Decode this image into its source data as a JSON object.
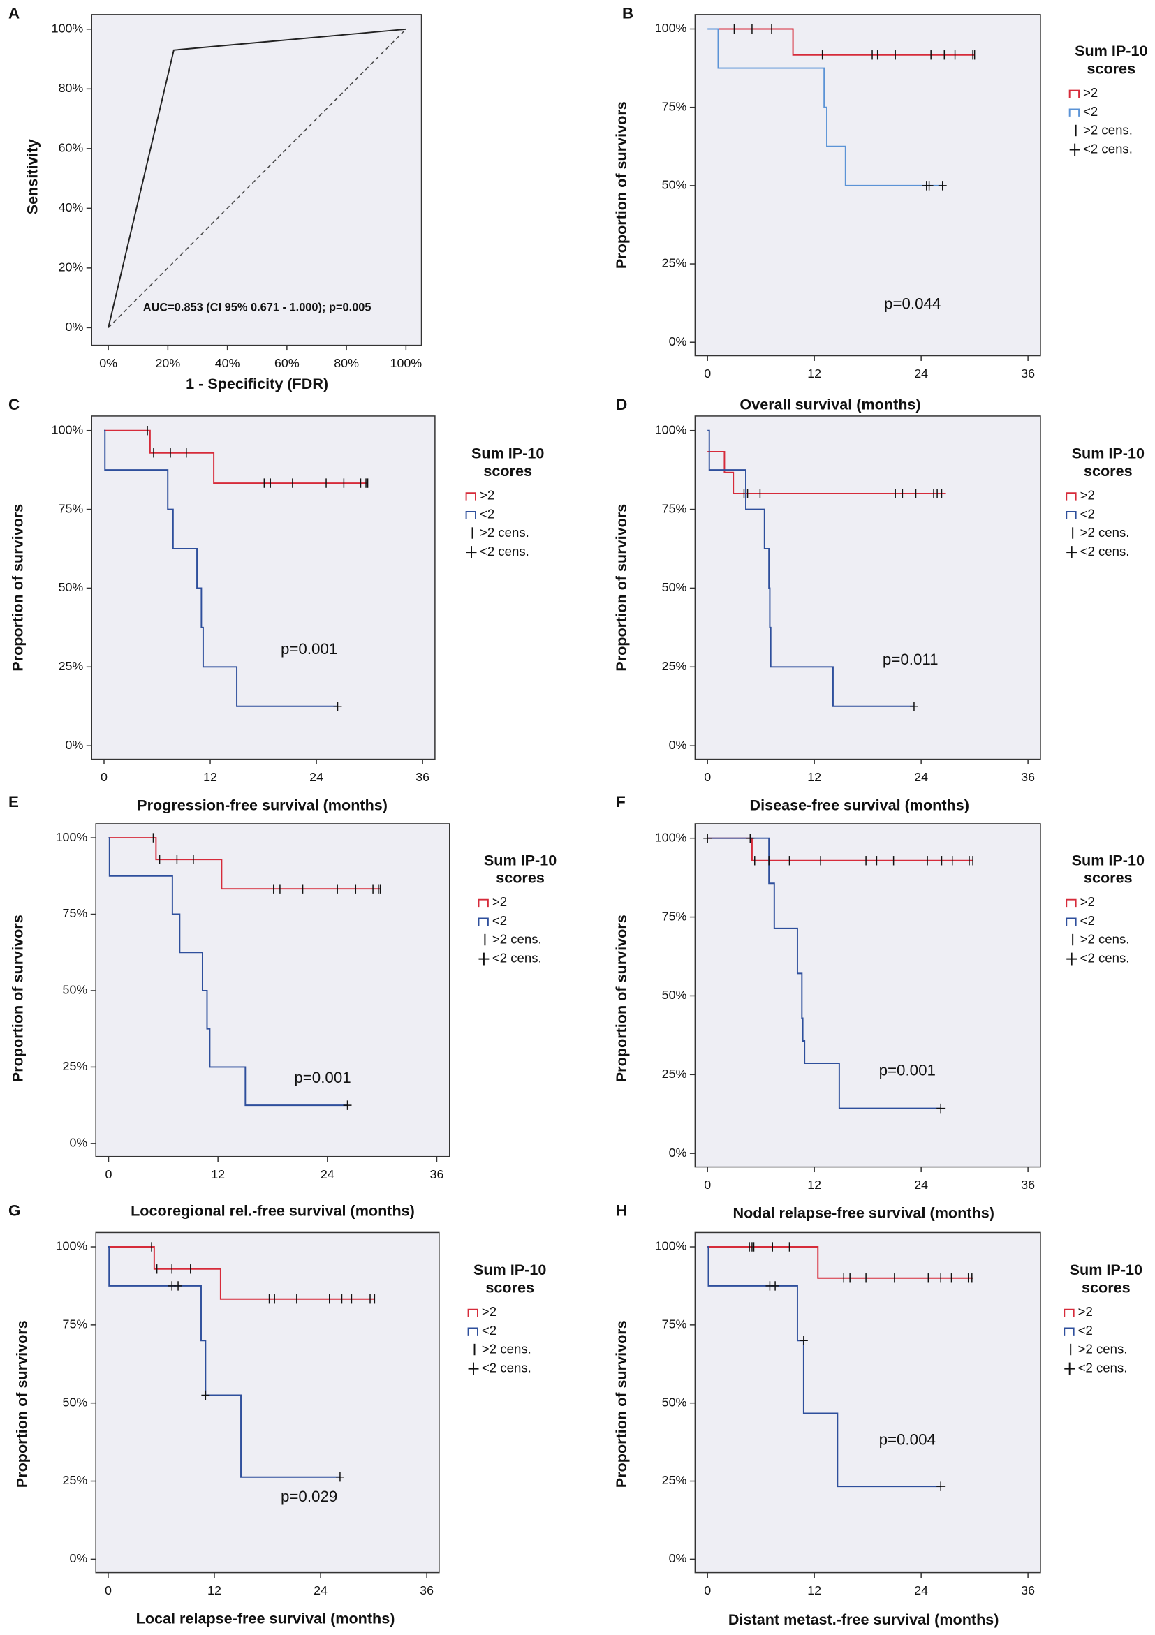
{
  "chart_data": [
    {
      "panel_label": "A",
      "type": "line",
      "x_label": "1 - Specificity (FDR)",
      "y_label": "Sensitivity",
      "annotation": "AUC=0.853 (CI 95% 0.671 - 1.000); p=0.005",
      "series": [
        {
          "color": "#222222",
          "x": [
            0,
            22,
            100
          ],
          "values": [
            0,
            93,
            100
          ]
        }
      ],
      "xlim": [
        -5.6,
        105.2
      ],
      "ylim": [
        -5.9,
        104.9
      ],
      "xticks": [
        {
          "value": 0,
          "label": "0%"
        },
        {
          "value": 20,
          "label": "20%"
        },
        {
          "value": 40,
          "label": "40%"
        },
        {
          "value": 60,
          "label": "60%"
        },
        {
          "value": 80,
          "label": "80%"
        },
        {
          "value": 100,
          "label": "100%"
        }
      ],
      "yticks": [
        {
          "value": 0,
          "label": "0%"
        },
        {
          "value": 20,
          "label": "20%"
        },
        {
          "value": 40,
          "label": "40%"
        },
        {
          "value": 60,
          "label": "60%"
        },
        {
          "value": 80,
          "label": "80%"
        },
        {
          "value": 100,
          "label": "100%"
        }
      ]
    },
    {
      "panel_label": "B",
      "type": "step",
      "x_label": "Overall survival (months)",
      "y_label": "Proportion of survivors",
      "annotation": "p=0.044",
      "legend_title": [
        "Sum IP-10",
        "scores"
      ],
      "series": [
        {
          "name": ">2",
          "color": "#d62b3a",
          "x": [
            1.2,
            9.6,
            30
          ],
          "values": [
            100,
            91.7,
            91.7
          ]
        },
        {
          "name": "<2",
          "color": "#5b93d6",
          "x": [
            0,
            1.2,
            13.1,
            13.4,
            15.5,
            26.4
          ],
          "values": [
            100,
            87.5,
            75,
            62.5,
            50,
            50
          ]
        },
        {
          "name": ">2 cens.",
          "marker": "tick",
          "color": "#111111",
          "x": [
            3,
            5,
            7.2,
            12.9,
            18.5,
            19.1,
            21.1,
            25.1,
            26.6,
            27.8,
            29.8,
            30
          ],
          "values": [
            100,
            100,
            100,
            91.7,
            91.7,
            91.7,
            91.7,
            91.7,
            91.7,
            91.7,
            91.7,
            91.7
          ]
        },
        {
          "name": "<2 cens.",
          "marker": "plus",
          "color": "#111111",
          "x": [
            24.6,
            24.9,
            26.4
          ],
          "values": [
            50,
            50,
            50
          ]
        }
      ],
      "xlim": [
        -1.4,
        37.4
      ],
      "ylim": [
        -4.3,
        104.6
      ],
      "xticks": [
        0,
        12,
        24,
        36
      ],
      "yticks": [
        {
          "value": 0,
          "label": "0%"
        },
        {
          "value": 25,
          "label": "25%"
        },
        {
          "value": 50,
          "label": "50%"
        },
        {
          "value": 75,
          "label": "75%"
        },
        {
          "value": 100,
          "label": "100%"
        }
      ]
    },
    {
      "panel_label": "C",
      "type": "step",
      "x_label": "Progression-free survival (months)",
      "y_label": "Proportion of survivors",
      "annotation": "p=0.001",
      "legend_title": [
        "Sum IP-10",
        "scores"
      ],
      "series": [
        {
          "name": ">2",
          "color": "#d62b3a",
          "x": [
            0,
            5.2,
            12.4,
            29.8
          ],
          "values": [
            100,
            92.9,
            83.3,
            83.3
          ]
        },
        {
          "name": "<2",
          "color": "#2e4f9c",
          "x": [
            0,
            0.1,
            7.2,
            7.8,
            10.5,
            11,
            11.2,
            15,
            26.4
          ],
          "values": [
            100,
            87.5,
            75,
            62.5,
            50,
            37.5,
            25,
            12.5,
            12.5
          ]
        },
        {
          "name": ">2 cens.",
          "marker": "tick",
          "color": "#111111",
          "x": [
            4.9,
            5.6,
            7.5,
            9.3,
            18.1,
            18.8,
            21.3,
            25.1,
            27.1,
            29,
            29.6,
            29.8
          ],
          "values": [
            100,
            92.9,
            92.9,
            92.9,
            83.3,
            83.3,
            83.3,
            83.3,
            83.3,
            83.3,
            83.3,
            83.3
          ]
        },
        {
          "name": "<2 cens.",
          "marker": "plus",
          "color": "#111111",
          "x": [
            26.4
          ],
          "values": [
            12.5
          ]
        }
      ],
      "xlim": [
        -1.4,
        37.4
      ],
      "ylim": [
        -4.3,
        104.6
      ],
      "xticks": [
        0,
        12,
        24,
        36
      ],
      "yticks": [
        {
          "value": 0,
          "label": "0%"
        },
        {
          "value": 25,
          "label": "25%"
        },
        {
          "value": 50,
          "label": "50%"
        },
        {
          "value": 75,
          "label": "75%"
        },
        {
          "value": 100,
          "label": "100%"
        }
      ]
    },
    {
      "panel_label": "D",
      "type": "step",
      "x_label": "Disease-free survival (months)",
      "y_label": "Proportion of survivors",
      "annotation": "p=0.011",
      "legend_title": [
        "Sum IP-10",
        "scores"
      ],
      "series": [
        {
          "name": ">2",
          "color": "#d62b3a",
          "x": [
            0,
            1.9,
            2.9,
            26.7
          ],
          "values": [
            93.3,
            86.7,
            80,
            80
          ]
        },
        {
          "name": "<2",
          "color": "#2e4f9c",
          "x": [
            0,
            0.2,
            4.3,
            6.4,
            6.9,
            7,
            7.1,
            14.1,
            23.2
          ],
          "values": [
            100,
            87.5,
            75,
            62.5,
            50,
            37.5,
            25,
            12.5,
            12.5
          ]
        },
        {
          "name": ">2 cens.",
          "marker": "tick",
          "color": "#111111",
          "x": [
            4.1,
            4.5,
            5.9,
            21.1,
            21.9,
            23.4,
            25.4,
            25.8,
            26.3
          ],
          "values": [
            80,
            80,
            80,
            80,
            80,
            80,
            80,
            80,
            80
          ]
        },
        {
          "name": "<2 cens.",
          "marker": "plus",
          "color": "#111111",
          "x": [
            23.2
          ],
          "values": [
            12.5
          ]
        }
      ],
      "xlim": [
        -1.4,
        37.4
      ],
      "ylim": [
        -4.3,
        104.6
      ],
      "xticks": [
        0,
        12,
        24,
        36
      ],
      "yticks": [
        {
          "value": 0,
          "label": "0%"
        },
        {
          "value": 25,
          "label": "25%"
        },
        {
          "value": 50,
          "label": "50%"
        },
        {
          "value": 75,
          "label": "75%"
        },
        {
          "value": 100,
          "label": "100%"
        }
      ]
    },
    {
      "panel_label": "E",
      "type": "step",
      "x_label": "Locoregional rel.-free survival (months)",
      "y_label": "Proportion of survivors",
      "annotation": "p=0.001",
      "legend_title": [
        "Sum IP-10",
        "scores"
      ],
      "series": [
        {
          "name": ">2",
          "color": "#d62b3a",
          "x": [
            0,
            5.2,
            12.4,
            29.8
          ],
          "values": [
            100,
            92.9,
            83.3,
            83.3
          ]
        },
        {
          "name": "<2",
          "color": "#2e4f9c",
          "x": [
            0,
            0.1,
            7,
            7.8,
            10.3,
            10.8,
            11.1,
            15,
            26.2
          ],
          "values": [
            100,
            87.5,
            75,
            62.5,
            50,
            37.5,
            25,
            12.5,
            12.5
          ]
        },
        {
          "name": ">2 cens.",
          "marker": "tick",
          "color": "#111111",
          "x": [
            4.9,
            5.6,
            7.5,
            9.3,
            18.1,
            18.8,
            21.3,
            25.1,
            27.1,
            29,
            29.6,
            29.8
          ],
          "values": [
            100,
            92.9,
            92.9,
            92.9,
            83.3,
            83.3,
            83.3,
            83.3,
            83.3,
            83.3,
            83.3,
            83.3
          ]
        },
        {
          "name": "<2 cens.",
          "marker": "plus",
          "color": "#111111",
          "x": [
            26.2
          ],
          "values": [
            12.5
          ]
        }
      ],
      "xlim": [
        -1.4,
        37.4
      ],
      "ylim": [
        -4.3,
        104.6
      ],
      "xticks": [
        0,
        12,
        24,
        36
      ],
      "yticks": [
        {
          "value": 0,
          "label": "0%"
        },
        {
          "value": 25,
          "label": "25%"
        },
        {
          "value": 50,
          "label": "50%"
        },
        {
          "value": 75,
          "label": "75%"
        },
        {
          "value": 100,
          "label": "100%"
        }
      ]
    },
    {
      "panel_label": "F",
      "type": "step",
      "x_label": "Nodal relapse-free survival (months)",
      "y_label": "Proportion of survivors",
      "annotation": "p=0.001",
      "legend_title": [
        "Sum IP-10",
        "scores"
      ],
      "series": [
        {
          "name": ">2",
          "color": "#d62b3a",
          "x": [
            0,
            5,
            29.8
          ],
          "values": [
            100,
            92.9,
            92.9
          ]
        },
        {
          "name": "<2",
          "color": "#2e4f9c",
          "x": [
            0,
            6.9,
            7.5,
            10.1,
            10.6,
            10.7,
            10.9,
            14.8,
            26.2
          ],
          "values": [
            100,
            85.7,
            71.4,
            57.1,
            42.9,
            35.7,
            28.6,
            14.3,
            14.3
          ]
        },
        {
          "name": ">2 cens.",
          "marker": "tick",
          "color": "#111111",
          "x": [
            4.8,
            5.3,
            6.9,
            9.2,
            12.7,
            17.8,
            19,
            20.9,
            24.7,
            26.3,
            27.5,
            29.4,
            29.8
          ],
          "values": [
            100,
            92.9,
            92.9,
            92.9,
            92.9,
            92.9,
            92.9,
            92.9,
            92.9,
            92.9,
            92.9,
            92.9,
            92.9
          ]
        },
        {
          "name": "<2 cens.",
          "marker": "plus",
          "color": "#111111",
          "x": [
            0,
            4.8,
            26.2
          ],
          "values": [
            100,
            100,
            14.3
          ]
        }
      ],
      "xlim": [
        -1.4,
        37.4
      ],
      "ylim": [
        -4.3,
        104.6
      ],
      "xticks": [
        0,
        12,
        24,
        36
      ],
      "yticks": [
        {
          "value": 0,
          "label": "0%"
        },
        {
          "value": 25,
          "label": "25%"
        },
        {
          "value": 50,
          "label": "50%"
        },
        {
          "value": 75,
          "label": "75%"
        },
        {
          "value": 100,
          "label": "100%"
        }
      ]
    },
    {
      "panel_label": "G",
      "type": "step",
      "x_label": "Local relapse-free survival (months)",
      "y_label": "Proportion of survivors",
      "annotation": "p=0.029",
      "legend_title": [
        "Sum IP-10",
        "scores"
      ],
      "series": [
        {
          "name": ">2",
          "color": "#d62b3a",
          "x": [
            0,
            5.2,
            12.7,
            30.1
          ],
          "values": [
            100,
            92.9,
            83.3,
            83.3
          ]
        },
        {
          "name": "<2",
          "color": "#2e4f9c",
          "x": [
            0,
            0.1,
            10.5,
            11,
            15,
            26.2
          ],
          "values": [
            100,
            87.5,
            70,
            52.5,
            26.3,
            26.3
          ]
        },
        {
          "name": ">2 cens.",
          "marker": "tick",
          "color": "#111111",
          "x": [
            4.9,
            5.5,
            7.2,
            9.3,
            18.2,
            18.8,
            21.3,
            25,
            26.4,
            27.5,
            29.6,
            30.1
          ],
          "values": [
            100,
            92.9,
            92.9,
            92.9,
            83.3,
            83.3,
            83.3,
            83.3,
            83.3,
            83.3,
            83.3,
            83.3
          ]
        },
        {
          "name": "<2 cens.",
          "marker": "plus",
          "color": "#111111",
          "x": [
            7.2,
            7.9,
            11,
            26.2
          ],
          "values": [
            87.5,
            87.5,
            52.5,
            26.3
          ]
        }
      ],
      "xlim": [
        -1.4,
        37.4
      ],
      "ylim": [
        -4.3,
        104.6
      ],
      "xticks": [
        0,
        12,
        24,
        36
      ],
      "yticks": [
        {
          "value": 0,
          "label": "0%"
        },
        {
          "value": 25,
          "label": "25%"
        },
        {
          "value": 50,
          "label": "50%"
        },
        {
          "value": 75,
          "label": "75%"
        },
        {
          "value": 100,
          "label": "100%"
        }
      ]
    },
    {
      "panel_label": "H",
      "type": "step",
      "x_label": "Distant metast.-free survival (months)",
      "y_label": "Proportion of survivors",
      "annotation": "p=0.004",
      "legend_title": [
        "Sum IP-10",
        "scores"
      ],
      "series": [
        {
          "name": ">2",
          "color": "#d62b3a",
          "x": [
            0,
            12.4,
            29.8
          ],
          "values": [
            100,
            90,
            90
          ]
        },
        {
          "name": "<2",
          "color": "#2e4f9c",
          "x": [
            0,
            0.1,
            10.1,
            10.8,
            14.6,
            26.2
          ],
          "values": [
            100,
            87.5,
            70,
            46.7,
            23.3,
            23.3
          ]
        },
        {
          "name": ">2 cens.",
          "marker": "tick",
          "color": "#111111",
          "x": [
            4.7,
            5,
            5.2,
            7.3,
            9.2,
            15.3,
            16,
            17.8,
            21,
            24.8,
            26.2,
            27.4,
            29.3,
            29.7
          ],
          "values": [
            100,
            100,
            100,
            100,
            100,
            90,
            90,
            90,
            90,
            90,
            90,
            90,
            90,
            90
          ]
        },
        {
          "name": "<2 cens.",
          "marker": "plus",
          "color": "#111111",
          "x": [
            7,
            7.6,
            10.8,
            26.2
          ],
          "values": [
            87.5,
            87.5,
            70,
            23.3
          ]
        }
      ],
      "xlim": [
        -1.4,
        37.4
      ],
      "ylim": [
        -4.3,
        104.6
      ],
      "xticks": [
        0,
        12,
        24,
        36
      ],
      "yticks": [
        {
          "value": 0,
          "label": "0%"
        },
        {
          "value": 25,
          "label": "25%"
        },
        {
          "value": 50,
          "label": "50%"
        },
        {
          "value": 75,
          "label": "75%"
        },
        {
          "value": 100,
          "label": "100%"
        }
      ]
    }
  ]
}
